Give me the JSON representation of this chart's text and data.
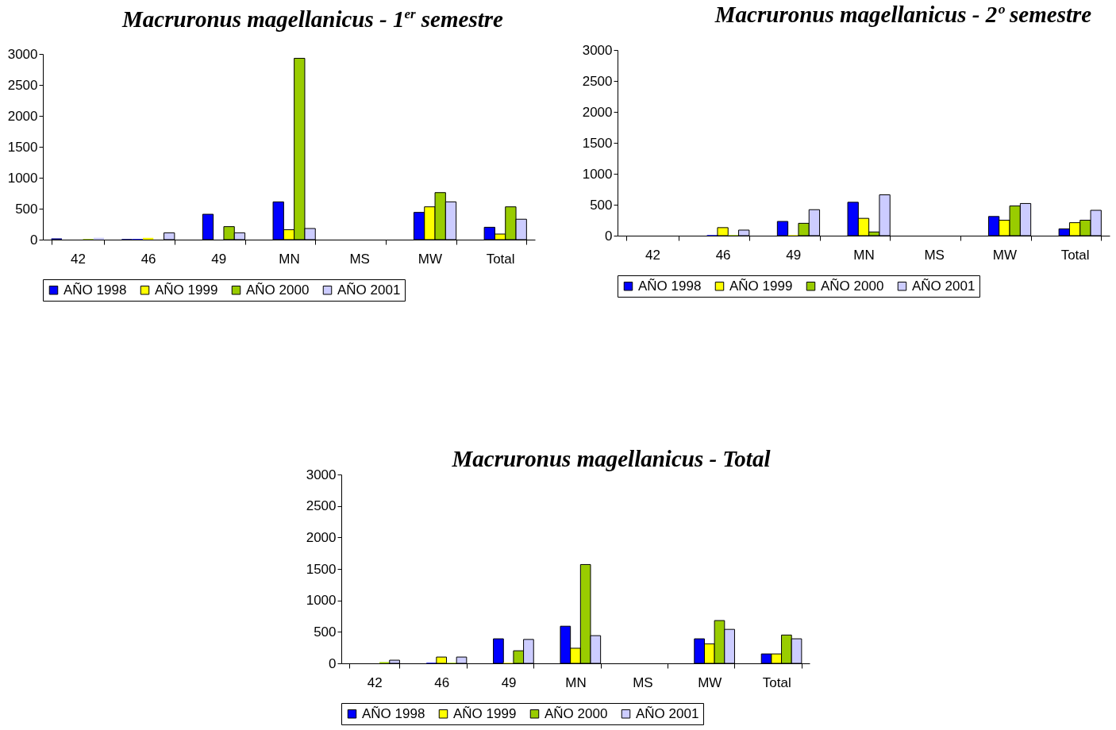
{
  "chart_data": [
    {
      "type": "bar",
      "title": "Macruronus magellanicus - 1$^{er}$ semestre",
      "categories": [
        "42",
        "46",
        "49",
        "MN",
        "MS",
        "MW",
        "Total"
      ],
      "ylim": [
        0,
        3000
      ],
      "yticks": [
        0,
        500,
        1000,
        1500,
        2000,
        2500,
        3000
      ],
      "legend": "bottom",
      "series": [
        {
          "color": "#000080",
          "values": [
            20,
            10,
            null,
            null,
            null,
            null,
            null
          ]
        },
        {
          "name": "AÑO 1998",
          "color": "#0000ff",
          "values": [
            null,
            10,
            410,
            610,
            null,
            440,
            200
          ]
        },
        {
          "name": "AÑO 1999",
          "color": "#ffff00",
          "values": [
            null,
            30,
            null,
            160,
            null,
            530,
            90
          ]
        },
        {
          "name": "AÑO 2000",
          "color": "#99cc00",
          "values": [
            10,
            null,
            210,
            2930,
            null,
            760,
            530
          ]
        },
        {
          "name": "AÑO 2001",
          "color": "#ccccff",
          "values": [
            30,
            110,
            110,
            180,
            null,
            610,
            330
          ]
        }
      ]
    },
    {
      "type": "bar",
      "title": "Macruronus magellanicus - 2º semestre",
      "categories": [
        "42",
        "46",
        "49",
        "MN",
        "MS",
        "MW",
        "Total"
      ],
      "ylim": [
        0,
        3000
      ],
      "yticks": [
        0,
        500,
        1000,
        1500,
        2000,
        2500,
        3000
      ],
      "legend": "bottom",
      "series": [
        {
          "color": "#000080",
          "values": [
            null,
            null,
            null,
            null,
            null,
            null,
            null
          ]
        },
        {
          "name": "AÑO 1998",
          "color": "#0000ff",
          "values": [
            null,
            10,
            230,
            540,
            null,
            310,
            110
          ]
        },
        {
          "name": "AÑO 1999",
          "color": "#ffff00",
          "values": [
            null,
            130,
            10,
            280,
            null,
            250,
            210
          ]
        },
        {
          "name": "AÑO 2000",
          "color": "#99cc00",
          "values": [
            null,
            10,
            200,
            60,
            null,
            480,
            250
          ]
        },
        {
          "name": "AÑO 2001",
          "color": "#ccccff",
          "values": [
            null,
            90,
            420,
            660,
            null,
            520,
            410
          ]
        }
      ]
    },
    {
      "type": "bar",
      "title": "Macruronus magellanicus - Total",
      "categories": [
        "42",
        "46",
        "49",
        "MN",
        "MS",
        "MW",
        "Total"
      ],
      "ylim": [
        0,
        3000
      ],
      "yticks": [
        0,
        500,
        1000,
        1500,
        2000,
        2500,
        3000
      ],
      "legend": "bottom",
      "series": [
        {
          "color": "#000080",
          "values": [
            null,
            null,
            null,
            null,
            null,
            null,
            null
          ]
        },
        {
          "name": "AÑO 1998",
          "color": "#0000ff",
          "values": [
            null,
            10,
            390,
            590,
            null,
            390,
            150
          ]
        },
        {
          "name": "AÑO 1999",
          "color": "#ffff00",
          "values": [
            null,
            100,
            10,
            240,
            null,
            310,
            150
          ]
        },
        {
          "name": "AÑO 2000",
          "color": "#99cc00",
          "values": [
            20,
            10,
            200,
            1570,
            null,
            680,
            450
          ]
        },
        {
          "name": "AÑO 2001",
          "color": "#ccccff",
          "values": [
            50,
            100,
            380,
            440,
            null,
            540,
            390
          ]
        }
      ]
    }
  ]
}
